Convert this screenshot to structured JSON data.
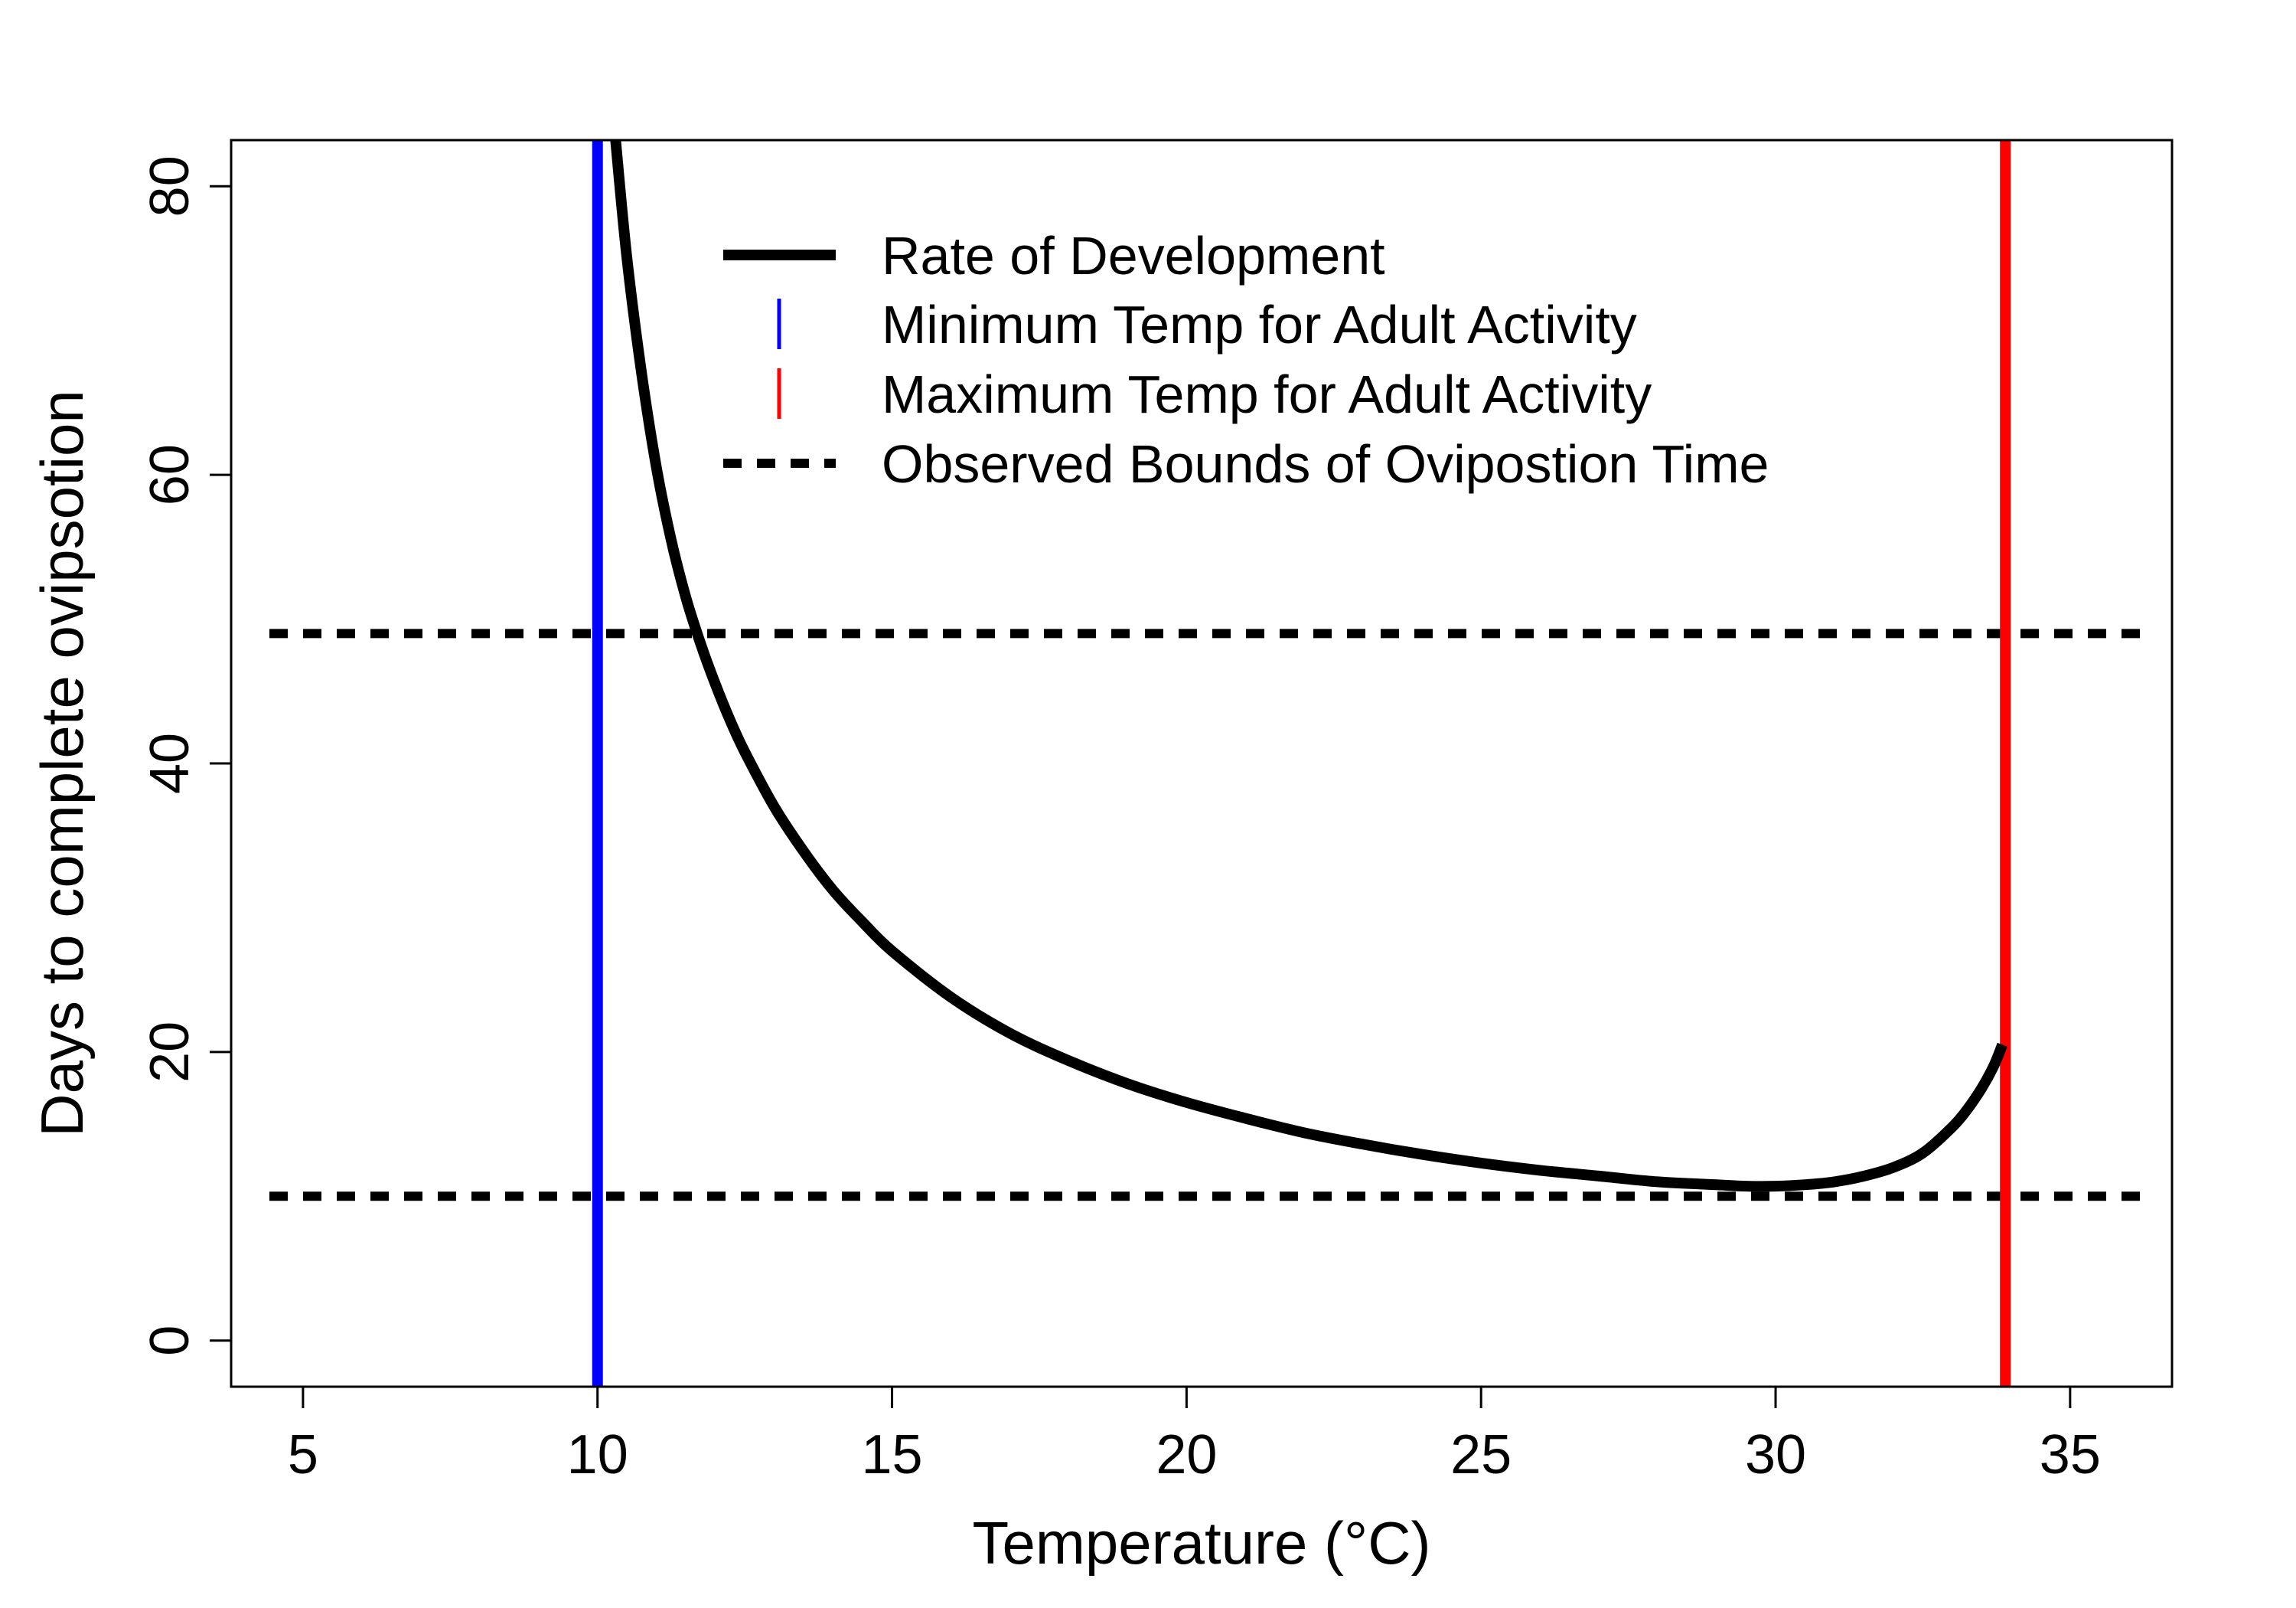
{
  "chart_data": {
    "type": "line",
    "title": "",
    "xlabel": "Temperature (°C)",
    "ylabel": "Days to complete ovipsotion",
    "xlim": [
      3.78,
      36.73
    ],
    "ylim": [
      -3.2,
      83.2
    ],
    "xticks": [
      5,
      10,
      15,
      20,
      25,
      30,
      35
    ],
    "yticks": [
      0,
      20,
      40,
      60,
      80
    ],
    "grid": false,
    "legend_position": "top-center",
    "series": [
      {
        "name": "Rate of Development",
        "color": "#000000",
        "style": "solid",
        "x": [
          10.3,
          10.5,
          10.75,
          11.0,
          11.25,
          11.5,
          11.75,
          12.0,
          12.25,
          12.5,
          13.0,
          13.5,
          14.0,
          14.5,
          15.0,
          16.0,
          17.0,
          18.0,
          19.0,
          20.0,
          21.0,
          22.0,
          23.0,
          24.0,
          25.0,
          26.0,
          27.0,
          28.0,
          29.0,
          29.5,
          30.0,
          30.5,
          31.0,
          31.5,
          32.0,
          32.5,
          33.0,
          33.25,
          33.5,
          33.7,
          33.85
        ],
        "y": [
          83.5,
          75.0,
          67.0,
          60.5,
          55.5,
          51.5,
          48.3,
          45.5,
          43.0,
          40.8,
          37.0,
          33.9,
          31.2,
          29.0,
          27.0,
          23.8,
          21.3,
          19.4,
          17.8,
          16.5,
          15.4,
          14.4,
          13.6,
          12.9,
          12.3,
          11.8,
          11.4,
          11.0,
          10.8,
          10.7,
          10.7,
          10.8,
          11.0,
          11.4,
          12.0,
          13.0,
          14.8,
          16.0,
          17.5,
          19.0,
          20.5
        ]
      },
      {
        "name": "Observed Bounds of Ovipostion Time",
        "color": "#000000",
        "style": "dashed",
        "hlines": [
          49,
          10
        ]
      }
    ],
    "vlines": [
      {
        "name": "Minimum Temp for Adult Activity",
        "x": 10,
        "color": "#0000ff"
      },
      {
        "name": "Maximum Temp for Adult Activity",
        "x": 33.9,
        "color": "#ff0000"
      }
    ],
    "legend": [
      {
        "label": "Rate of Development",
        "kind": "solid-line",
        "color": "#000000"
      },
      {
        "label": "Minimum Temp for Adult Activity",
        "kind": "vertical-tick",
        "color": "#0000ff"
      },
      {
        "label": "Maximum Temp for Adult Activity",
        "kind": "vertical-tick",
        "color": "#ff0000"
      },
      {
        "label": "Observed Bounds of Ovipostion Time",
        "kind": "dashed-line",
        "color": "#000000"
      }
    ]
  }
}
